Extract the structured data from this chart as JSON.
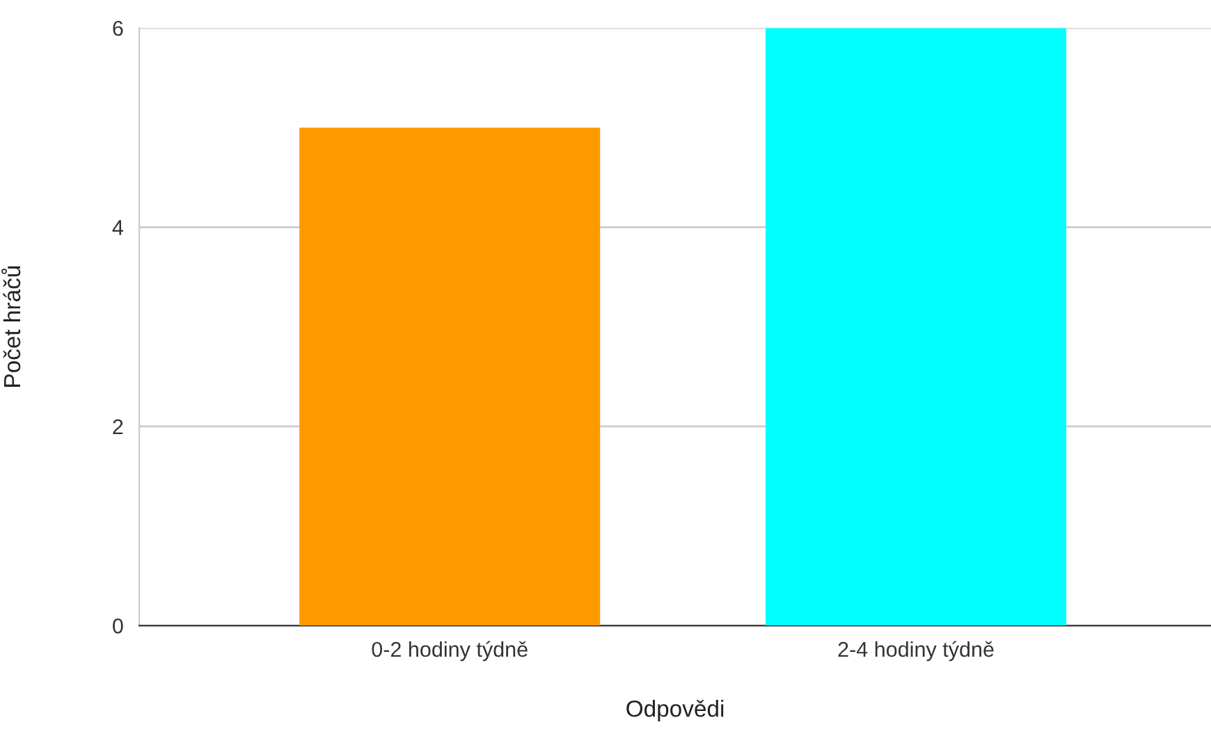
{
  "chart_data": {
    "type": "bar",
    "xlabel": "Odpovědi",
    "ylabel": "Počet hráčů",
    "categories": [
      "0-2 hodiny týdně",
      "2-4 hodiny týdně"
    ],
    "values": [
      5,
      6
    ],
    "colors": [
      "#ff9900",
      "#00ffff"
    ],
    "ylim": [
      0,
      6
    ],
    "yticks": [
      0,
      2,
      4,
      6
    ],
    "grid": "y",
    "legend": false
  }
}
